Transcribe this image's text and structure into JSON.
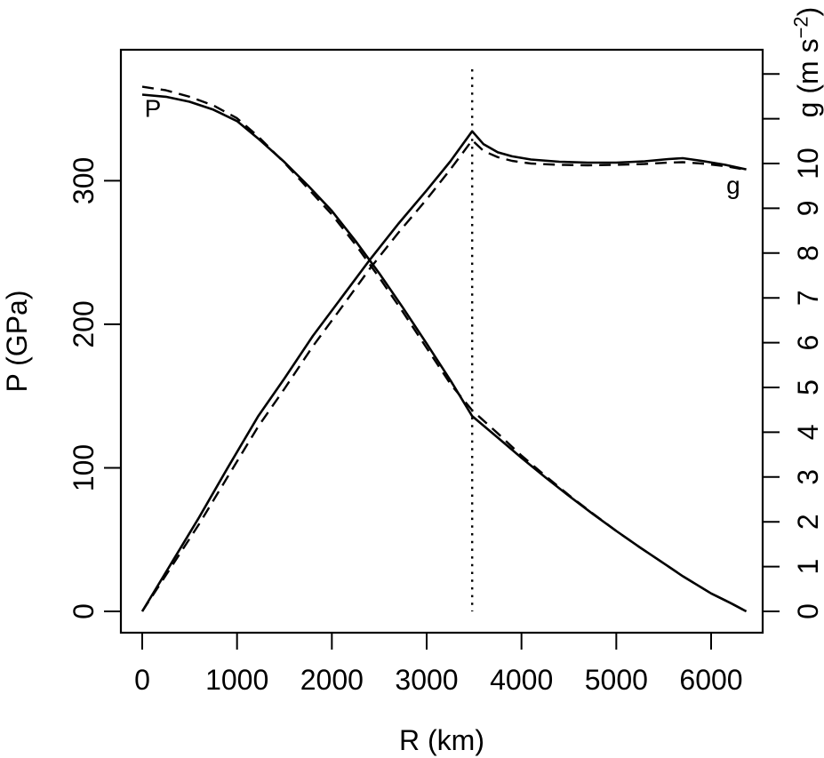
{
  "figure": {
    "background": "#ffffff",
    "foreground": "#000000"
  },
  "chart_data": {
    "type": "line",
    "title": "",
    "xlabel": "R (km)",
    "ylabel_left": "P (GPa)",
    "ylabel_right_parts": {
      "pre": "g (m s",
      "sup": "−2",
      "post": ")"
    },
    "x_ticks": [
      0,
      1000,
      2000,
      3000,
      4000,
      5000,
      6000
    ],
    "y_left_ticks": [
      0,
      100,
      200,
      300
    ],
    "y_right_ticks_labeled": [
      0,
      1,
      2,
      3,
      4,
      5,
      6,
      7,
      8,
      9,
      10
    ],
    "y_right_ticks_unlabeled": [
      11,
      12
    ],
    "x_range_km": [
      0,
      6371
    ],
    "y_left_range_gpa": [
      0,
      392
    ],
    "y_right_range_ms2": [
      0,
      12.5
    ],
    "grid": false,
    "legend": "none",
    "boundary_marker": {
      "name": "core-mantle-boundary",
      "R_km": 3480,
      "style": "dotted"
    },
    "series": [
      {
        "name": "pressure-solid",
        "axis": "left",
        "style": "solid",
        "points": [
          [
            0,
            360
          ],
          [
            250,
            358.5
          ],
          [
            500,
            355
          ],
          [
            750,
            349.5
          ],
          [
            1000,
            341.5
          ],
          [
            1221,
            329.5
          ],
          [
            1500,
            313
          ],
          [
            1750,
            296.5
          ],
          [
            2000,
            279
          ],
          [
            2250,
            258
          ],
          [
            2500,
            235.5
          ],
          [
            2750,
            211.5
          ],
          [
            3000,
            186.5
          ],
          [
            3250,
            161
          ],
          [
            3480,
            136
          ],
          [
            3750,
            121
          ],
          [
            4000,
            107
          ],
          [
            4250,
            93.5
          ],
          [
            4500,
            80.5
          ],
          [
            4750,
            68
          ],
          [
            5000,
            56
          ],
          [
            5250,
            44.5
          ],
          [
            5500,
            33.5
          ],
          [
            5701,
            24.5
          ],
          [
            6000,
            12.5
          ],
          [
            6200,
            6
          ],
          [
            6371,
            0
          ]
        ]
      },
      {
        "name": "pressure-dashed",
        "axis": "left",
        "style": "dashed",
        "points": [
          [
            0,
            365.5
          ],
          [
            250,
            363
          ],
          [
            500,
            358.5
          ],
          [
            750,
            352.5
          ],
          [
            1000,
            343.5
          ],
          [
            1221,
            331
          ],
          [
            1500,
            312.5
          ],
          [
            1750,
            294.5
          ],
          [
            2000,
            276.5
          ],
          [
            2250,
            255.5
          ],
          [
            2500,
            232.5
          ],
          [
            2750,
            208.5
          ],
          [
            3000,
            183.5
          ],
          [
            3250,
            158.5
          ],
          [
            3480,
            140
          ],
          [
            3750,
            124
          ],
          [
            4000,
            108.5
          ],
          [
            4250,
            94.5
          ],
          [
            4500,
            81
          ],
          [
            4750,
            68.3
          ],
          [
            5000,
            56
          ],
          [
            5250,
            44.5
          ],
          [
            5500,
            33.5
          ],
          [
            5701,
            24.5
          ],
          [
            6000,
            12.5
          ],
          [
            6200,
            6
          ],
          [
            6371,
            0
          ]
        ]
      },
      {
        "name": "gravity-solid",
        "axis": "right",
        "style": "solid",
        "points": [
          [
            0,
            0
          ],
          [
            300,
            1.05
          ],
          [
            600,
            2.1
          ],
          [
            900,
            3.2
          ],
          [
            1221,
            4.35
          ],
          [
            1500,
            5.2
          ],
          [
            1800,
            6.15
          ],
          [
            2100,
            7.0
          ],
          [
            2400,
            7.85
          ],
          [
            2700,
            8.65
          ],
          [
            3000,
            9.4
          ],
          [
            3250,
            10.05
          ],
          [
            3480,
            10.72
          ],
          [
            3600,
            10.43
          ],
          [
            3750,
            10.25
          ],
          [
            3900,
            10.16
          ],
          [
            4100,
            10.09
          ],
          [
            4400,
            10.04
          ],
          [
            4700,
            10.02
          ],
          [
            5000,
            10.02
          ],
          [
            5300,
            10.05
          ],
          [
            5550,
            10.1
          ],
          [
            5701,
            10.12
          ],
          [
            5900,
            10.06
          ],
          [
            6150,
            9.97
          ],
          [
            6371,
            9.87
          ]
        ]
      },
      {
        "name": "gravity-dashed",
        "axis": "right",
        "style": "dashed",
        "points": [
          [
            0,
            0
          ],
          [
            300,
            0.97
          ],
          [
            600,
            1.95
          ],
          [
            900,
            3.0
          ],
          [
            1221,
            4.12
          ],
          [
            1500,
            4.97
          ],
          [
            1800,
            5.92
          ],
          [
            2100,
            6.78
          ],
          [
            2400,
            7.65
          ],
          [
            2700,
            8.45
          ],
          [
            3000,
            9.2
          ],
          [
            3250,
            9.87
          ],
          [
            3480,
            10.52
          ],
          [
            3600,
            10.28
          ],
          [
            3750,
            10.14
          ],
          [
            3900,
            10.06
          ],
          [
            4100,
            10.0
          ],
          [
            4400,
            9.97
          ],
          [
            4700,
            9.96
          ],
          [
            5000,
            9.97
          ],
          [
            5300,
            9.99
          ],
          [
            5550,
            10.02
          ],
          [
            5701,
            10.03
          ],
          [
            5900,
            10.0
          ],
          [
            6150,
            9.94
          ],
          [
            6371,
            9.86
          ]
        ]
      }
    ],
    "annotations": [
      {
        "text": "P",
        "R_km": 112,
        "value": 350,
        "axis": "left"
      },
      {
        "text": "g",
        "R_km": 6234,
        "value": 9.5,
        "axis": "right"
      }
    ]
  }
}
